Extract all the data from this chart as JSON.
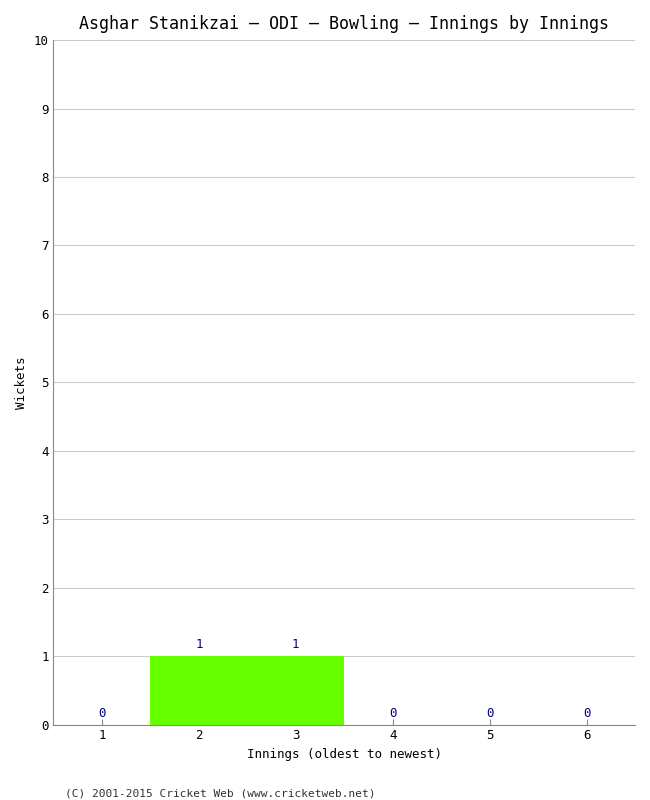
{
  "title": "Asghar Stanikzai – ODI – Bowling – Innings by Innings",
  "xlabel": "Innings (oldest to newest)",
  "ylabel": "Wickets",
  "x_values": [
    1,
    2,
    3,
    4,
    5,
    6
  ],
  "y_values": [
    0,
    1,
    1,
    0,
    0,
    0
  ],
  "ylim": [
    0,
    10
  ],
  "xlim": [
    0.5,
    6.5
  ],
  "bar_color": "#66ff00",
  "bar_edge_color": "#000000",
  "label_color": "#000080",
  "background_color": "#ffffff",
  "plot_bg_color": "#ffffff",
  "footer": "(C) 2001-2015 Cricket Web (www.cricketweb.net)",
  "title_fontsize": 12,
  "axis_label_fontsize": 9,
  "tick_fontsize": 9,
  "annotation_fontsize": 9,
  "footer_fontsize": 8,
  "yticks": [
    0,
    1,
    2,
    3,
    4,
    5,
    6,
    7,
    8,
    9,
    10
  ],
  "xticks": [
    1,
    2,
    3,
    4,
    5,
    6
  ]
}
